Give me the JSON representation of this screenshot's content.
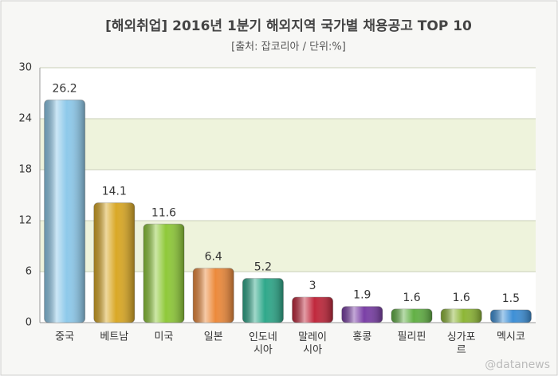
{
  "chart_data": {
    "type": "bar",
    "title": "[해외취업] 2016년 1분기 해외지역 국가별 채용공고 TOP 10",
    "subtitle": "[출처: 잡코리아 / 단위:%]",
    "watermark": "@datanews",
    "categories": [
      "중국",
      "베트남",
      "미국",
      "일본",
      "인도네\n시아",
      "말레이\n시아",
      "홍콩",
      "필리핀",
      "싱가포\n르",
      "멕시코"
    ],
    "values": [
      26.2,
      14.1,
      11.6,
      6.4,
      5.2,
      3,
      1.9,
      1.6,
      1.6,
      1.5
    ],
    "colors": [
      "#8ec9ea",
      "#d9a826",
      "#8fc93a",
      "#ec8a3c",
      "#2fa88a",
      "#c0283c",
      "#7a3fa6",
      "#62b045",
      "#8db636",
      "#3d8fd6"
    ],
    "ylim": [
      0,
      30
    ],
    "yticks": [
      0,
      6,
      12,
      18,
      24,
      30
    ],
    "grid": true
  }
}
